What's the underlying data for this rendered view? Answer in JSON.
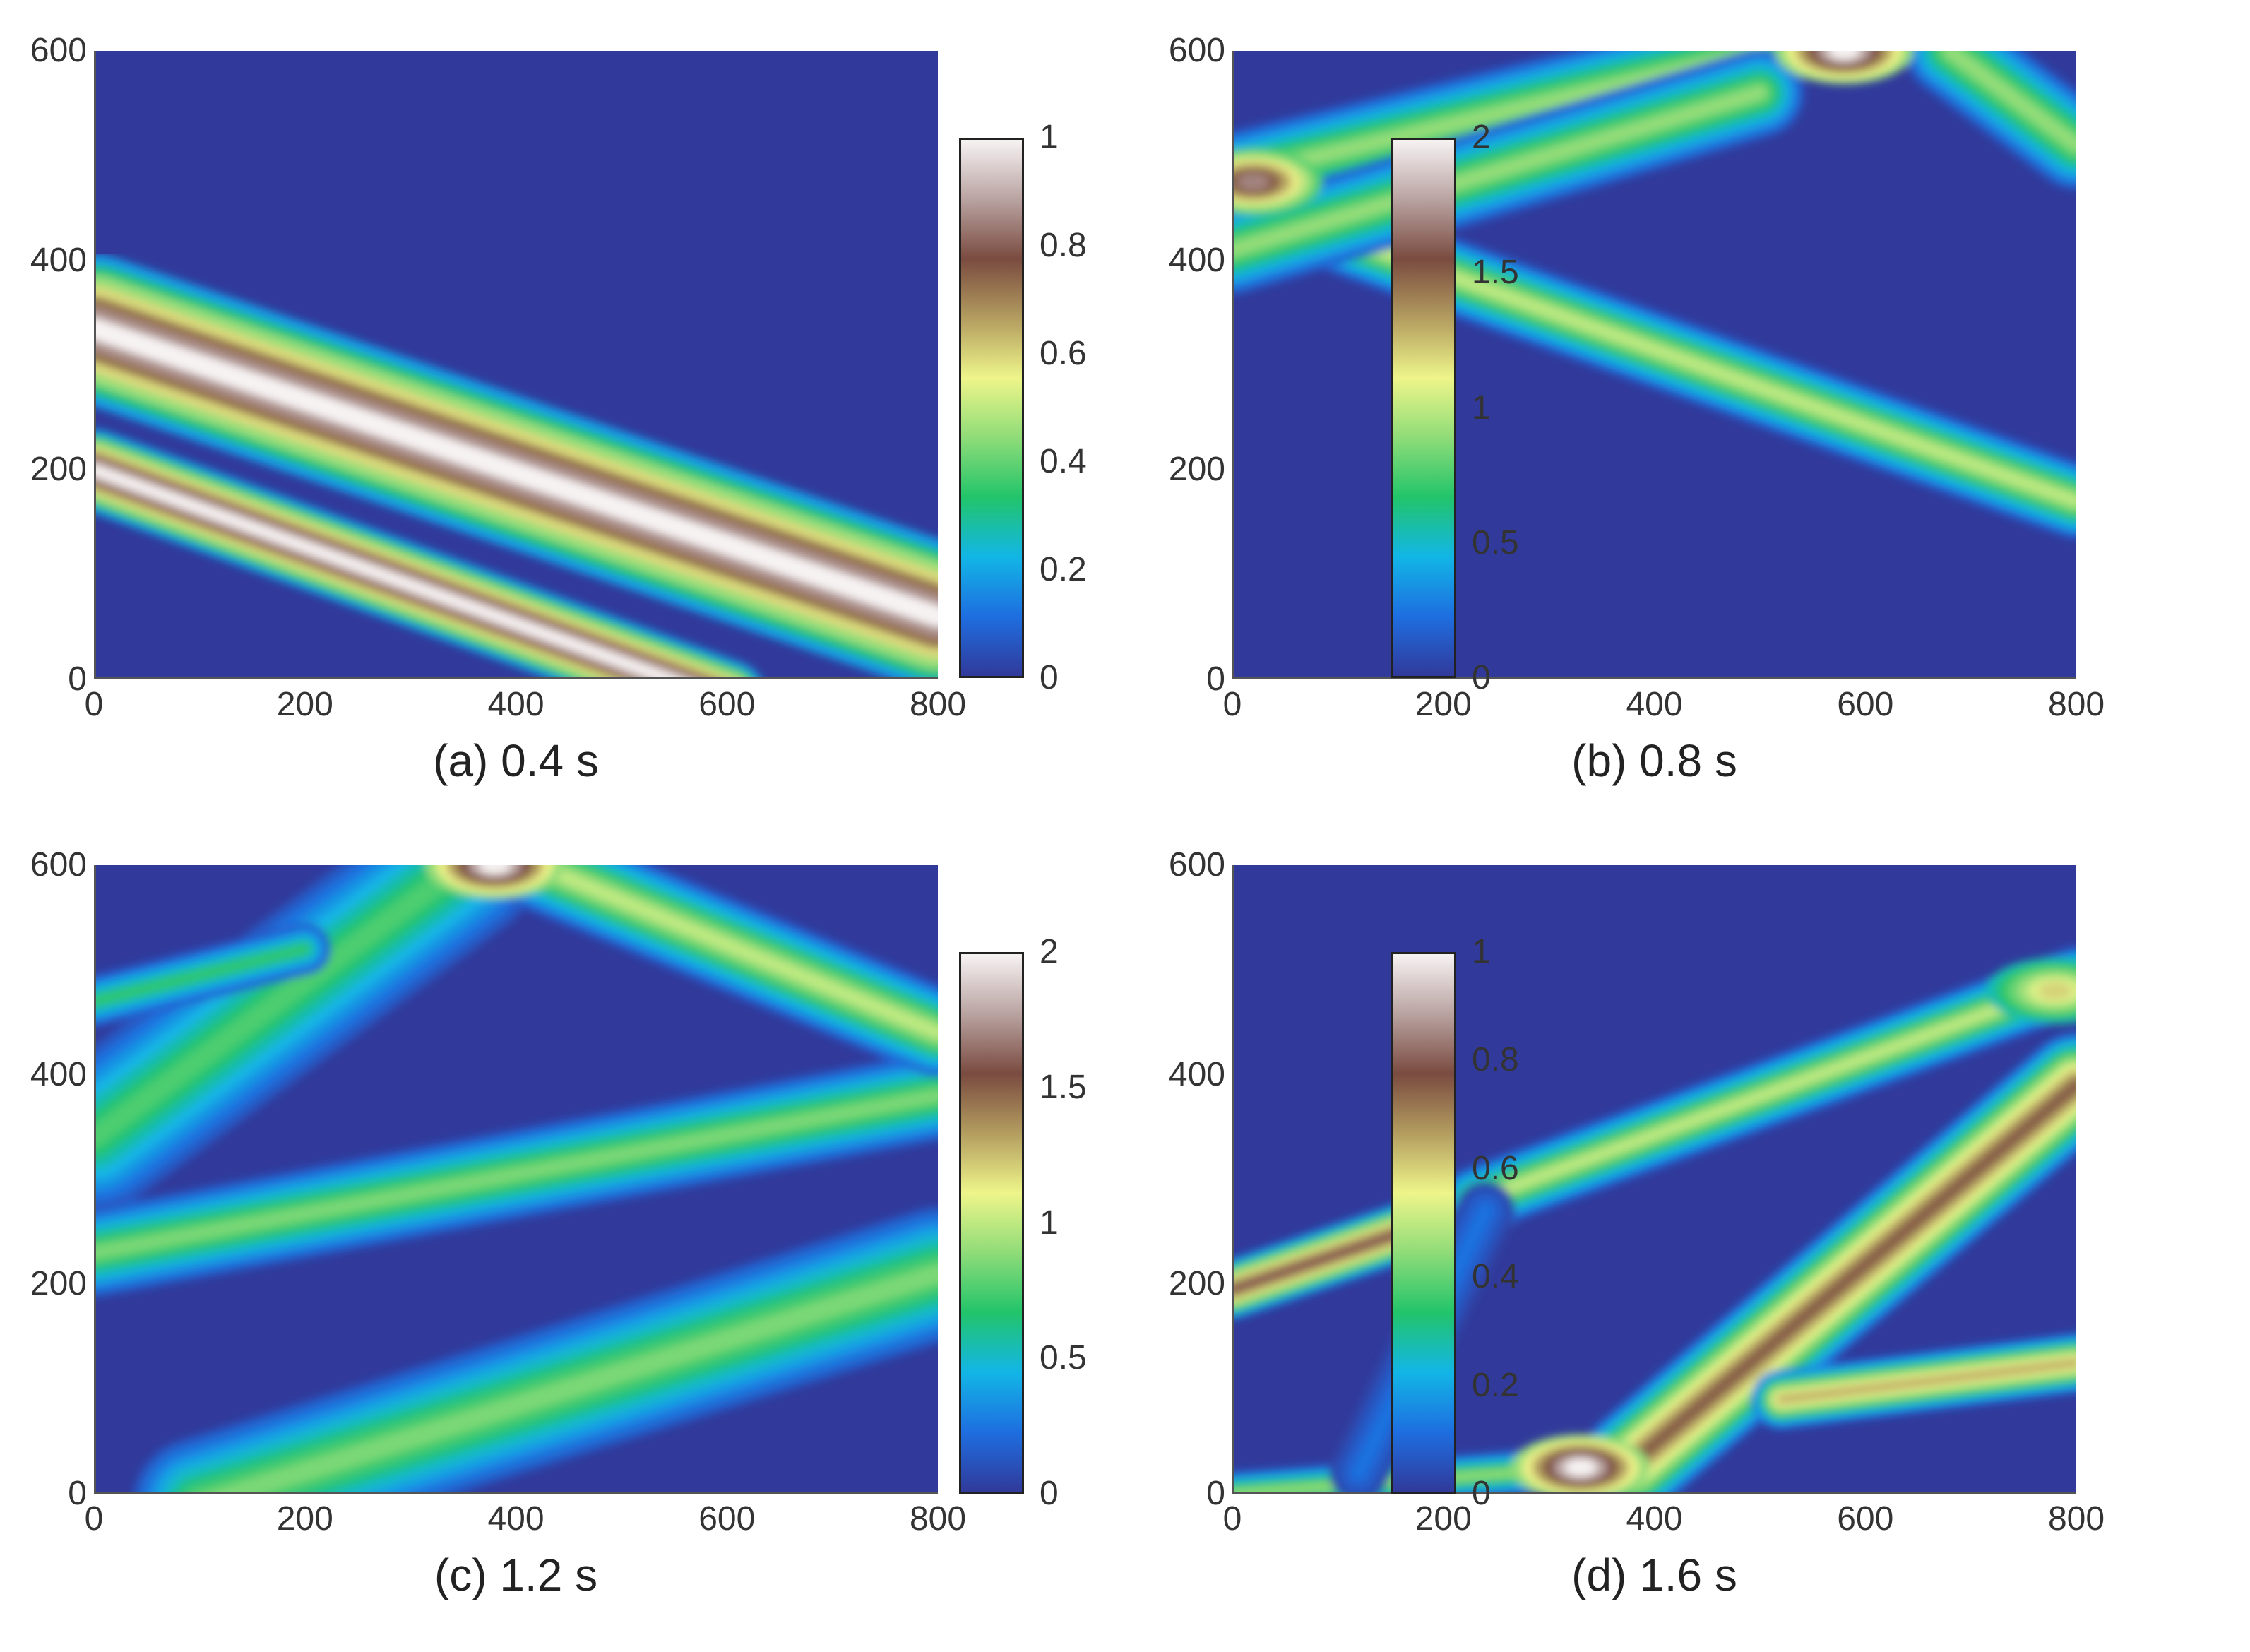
{
  "figure_colors": {
    "background": "#313a9b",
    "colormap": [
      "#313a9b",
      "#1e6ee0",
      "#12b6e6",
      "#22c46a",
      "#8fdc78",
      "#eef58a",
      "#b39d5f",
      "#7a4b40",
      "#b9a3a1",
      "#f7f3f3"
    ]
  },
  "chart_data": [
    {
      "type": "heatmap",
      "caption": "(a) 0.4 s",
      "x_ticks": [
        "0",
        "200",
        "400",
        "600",
        "800"
      ],
      "y_ticks": [
        "0",
        "200",
        "400",
        "600"
      ],
      "xlim": [
        0,
        800
      ],
      "ylim": [
        0,
        600
      ],
      "colorbar": {
        "range": [
          0,
          1
        ],
        "ticks": [
          "0",
          "0.2",
          "0.4",
          "0.6",
          "0.8",
          "1"
        ]
      },
      "bands": [
        {
          "from": [
            0,
            335
          ],
          "to": [
            800,
            60
          ],
          "level": 1.0,
          "width": 100
        },
        {
          "from": [
            0,
            200
          ],
          "to": [
            600,
            -20
          ],
          "level": 1.0,
          "width": 55
        }
      ]
    },
    {
      "type": "heatmap",
      "caption": "(b) 0.8 s",
      "x_ticks": [
        "0",
        "200",
        "400",
        "600",
        "800"
      ],
      "y_ticks": [
        "0",
        "200",
        "400",
        "600"
      ],
      "xlim": [
        0,
        800
      ],
      "ylim": [
        0,
        600
      ],
      "colorbar": {
        "range": [
          0,
          2
        ],
        "ticks": [
          "0",
          "0.5",
          "1",
          "1.5",
          "2"
        ]
      },
      "bands": [
        {
          "from": [
            0,
            460
          ],
          "to": [
            800,
            170
          ],
          "level": 1.0,
          "width": 50
        },
        {
          "from": [
            0,
            480
          ],
          "to": [
            500,
            600
          ],
          "level": 0.9,
          "width": 60
        },
        {
          "from": [
            0,
            410
          ],
          "to": [
            500,
            560
          ],
          "level": 0.9,
          "width": 60
        },
        {
          "from": [
            680,
            600
          ],
          "to": [
            800,
            510
          ],
          "level": 0.9,
          "width": 60
        }
      ],
      "hotspots": [
        {
          "x": 20,
          "y": 475,
          "level": 1.7
        },
        {
          "x": 580,
          "y": 600,
          "level": 2.0
        }
      ]
    },
    {
      "type": "heatmap",
      "caption": "(c) 1.2 s",
      "x_ticks": [
        "0",
        "200",
        "400",
        "600",
        "800"
      ],
      "y_ticks": [
        "0",
        "200",
        "400",
        "600"
      ],
      "xlim": [
        0,
        800
      ],
      "ylim": [
        0,
        600
      ],
      "colorbar": {
        "range": [
          0,
          2
        ],
        "ticks": [
          "0",
          "0.5",
          "1",
          "1.5",
          "2"
        ]
      },
      "bands": [
        {
          "from": [
            0,
            230
          ],
          "to": [
            800,
            380
          ],
          "level": 0.85,
          "width": 60
        },
        {
          "from": [
            0,
            340
          ],
          "to": [
            350,
            600
          ],
          "level": 0.75,
          "width": 100
        },
        {
          "from": [
            0,
            470
          ],
          "to": [
            200,
            520
          ],
          "level": 0.7,
          "width": 35
        },
        {
          "from": [
            420,
            600
          ],
          "to": [
            800,
            440
          ],
          "level": 1.0,
          "width": 60
        },
        {
          "from": [
            100,
            -10
          ],
          "to": [
            800,
            210
          ],
          "level": 0.85,
          "width": 90
        }
      ],
      "hotspots": [
        {
          "x": 380,
          "y": 600,
          "level": 2.0
        }
      ]
    },
    {
      "type": "heatmap",
      "caption": "(d) 1.6 s",
      "x_ticks": [
        "0",
        "200",
        "400",
        "600",
        "800"
      ],
      "y_ticks": [
        "0",
        "200",
        "400",
        "600"
      ],
      "xlim": [
        0,
        800
      ],
      "ylim": [
        0,
        600
      ],
      "colorbar": {
        "range": [
          0,
          1
        ],
        "ticks": [
          "0",
          "0.2",
          "0.4",
          "0.6",
          "0.8",
          "1"
        ]
      },
      "bands": [
        {
          "from": [
            0,
            195
          ],
          "to": [
            250,
            280
          ],
          "level": 0.8,
          "width": 40
        },
        {
          "from": [
            230,
            280
          ],
          "to": [
            800,
            490
          ],
          "level": 0.5,
          "width": 45
        },
        {
          "from": [
            0,
            0
          ],
          "to": [
            400,
            30
          ],
          "level": 0.45,
          "width": 30
        },
        {
          "from": [
            380,
            30
          ],
          "to": [
            800,
            390
          ],
          "level": 0.75,
          "width": 70
        },
        {
          "from": [
            520,
            90
          ],
          "to": [
            800,
            125
          ],
          "level": 0.65,
          "width": 40
        },
        {
          "from": [
            120,
            20
          ],
          "to": [
            240,
            270
          ],
          "level": 0.12,
          "width": 40
        }
      ],
      "hotspots": [
        {
          "x": 330,
          "y": 25,
          "level": 1.0
        },
        {
          "x": 780,
          "y": 480,
          "level": 0.6
        }
      ]
    }
  ]
}
